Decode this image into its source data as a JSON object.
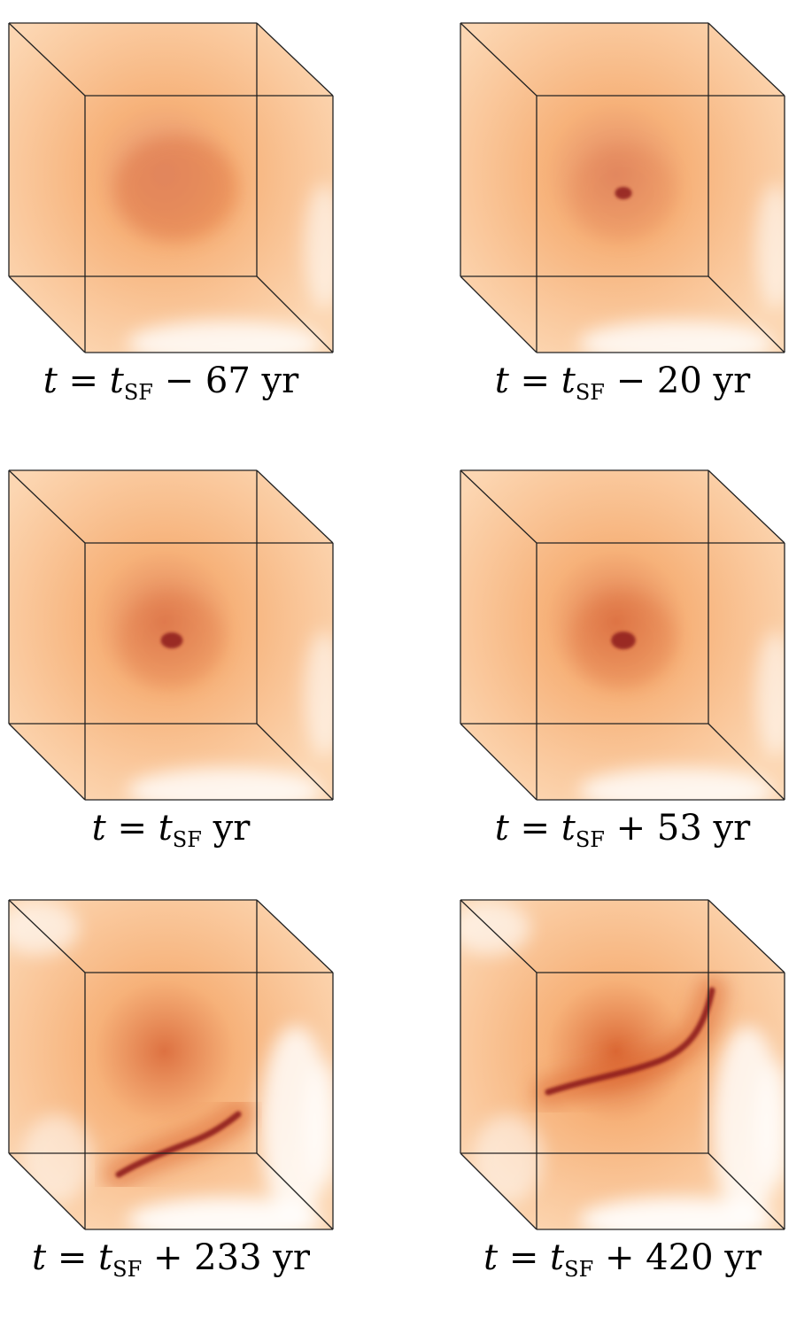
{
  "figure": {
    "panels": [
      {
        "var": "t",
        "eq": "=",
        "base": "t",
        "sub": "SF",
        "op": "−",
        "value": "67",
        "unit": "yr",
        "structure": "diffuse",
        "intensity": 0.2
      },
      {
        "var": "t",
        "eq": "=",
        "base": "t",
        "sub": "SF",
        "op": "−",
        "value": "20",
        "unit": "yr",
        "structure": "core",
        "intensity": 0.4
      },
      {
        "var": "t",
        "eq": "=",
        "base": "t",
        "sub": "SF",
        "op": "",
        "value": "",
        "unit": "yr",
        "structure": "core",
        "intensity": 0.6
      },
      {
        "var": "t",
        "eq": "=",
        "base": "t",
        "sub": "SF",
        "op": "+",
        "value": "53",
        "unit": "yr",
        "structure": "core",
        "intensity": 0.7
      },
      {
        "var": "t",
        "eq": "=",
        "base": "t",
        "sub": "SF",
        "op": "+",
        "value": "233",
        "unit": "yr",
        "structure": "filament",
        "intensity": 0.85
      },
      {
        "var": "t",
        "eq": "=",
        "base": "t",
        "sub": "SF",
        "op": "+",
        "value": "420",
        "unit": "yr",
        "structure": "filament",
        "intensity": 1.0
      }
    ],
    "colors": {
      "gas_light": "#fbc999",
      "gas_mid": "#f5a462",
      "gas_dense": "#d9602a",
      "filament": "#8e1e1e",
      "edge": "#222222"
    }
  }
}
